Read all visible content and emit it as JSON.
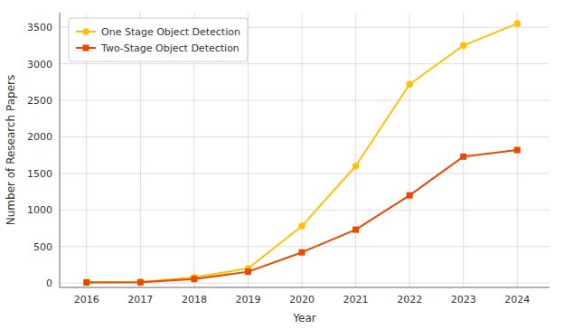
{
  "chart_data": {
    "type": "line",
    "x": [
      2016,
      2017,
      2018,
      2019,
      2020,
      2021,
      2022,
      2023,
      2024
    ],
    "series": [
      {
        "name": "One Stage Object Detection",
        "color": "#FFC107",
        "marker": "circle",
        "values": [
          10,
          15,
          80,
          200,
          780,
          1600,
          2720,
          3250,
          3550
        ]
      },
      {
        "name": "Two-Stage Object Detection",
        "color": "#E64A00",
        "marker": "square",
        "values": [
          8,
          10,
          55,
          155,
          420,
          730,
          1200,
          1730,
          1820
        ]
      }
    ],
    "x_label": "Year",
    "y_label": "Number of Research Papers",
    "xlim": [
      2015.5,
      2024.6
    ],
    "xticks": [
      2016,
      2017,
      2018,
      2019,
      2020,
      2021,
      2022,
      2023,
      2024
    ],
    "ylim": [
      -60,
      3700
    ],
    "yticks": [
      0,
      500,
      1000,
      1500,
      2000,
      2500,
      3000,
      3500
    ],
    "grid": true,
    "legend": "upper-left"
  }
}
